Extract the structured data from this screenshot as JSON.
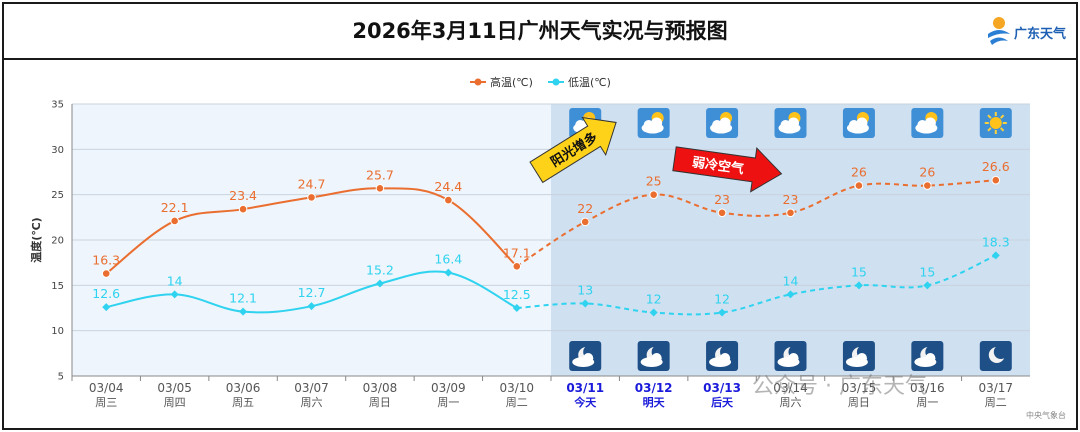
{
  "header": {
    "title": "2026年3月11日广州天气实况与预报图",
    "brand": "广东天气"
  },
  "watermark": "公众号 · 广东天气",
  "source": "中央气象台",
  "annotations": {
    "sunny_increase": "阳光增多",
    "weak_cold_air": "弱冷空气"
  },
  "colors": {
    "high": "#ea6e2f",
    "low": "#2fd3ef",
    "forecast_bg": "#cfe0f1",
    "observed_bg": "#eef5fc",
    "arrow_yellow": "#ffd21a",
    "arrow_red": "#ee1111",
    "forecast_date": "#1a1adb"
  },
  "chart_data": {
    "type": "line",
    "ylabel": "温度(℃)",
    "ylim": [
      5,
      35
    ],
    "yticks": [
      5,
      10,
      15,
      20,
      25,
      30,
      35
    ],
    "grid": true,
    "legend_position": "top-center",
    "categories": [
      "03/04",
      "03/05",
      "03/06",
      "03/07",
      "03/08",
      "03/09",
      "03/10",
      "03/11",
      "03/12",
      "03/13",
      "03/14",
      "03/15",
      "03/16",
      "03/17"
    ],
    "weekdays": [
      "周三",
      "周四",
      "周五",
      "周六",
      "周日",
      "周一",
      "周二",
      "今天",
      "明天",
      "后天",
      "周六",
      "周日",
      "周一",
      "周二"
    ],
    "forecast_start_index": 7,
    "series": [
      {
        "name": "高温(℃)",
        "values": [
          16.3,
          22.1,
          23.4,
          24.7,
          25.7,
          24.4,
          17.1,
          22,
          25,
          23,
          23,
          26,
          26,
          26.6
        ]
      },
      {
        "name": "低温(℃)",
        "values": [
          12.6,
          14,
          12.1,
          12.7,
          15.2,
          16.4,
          12.5,
          13,
          12,
          12,
          14,
          15,
          15,
          18.3
        ]
      }
    ],
    "day_icons": [
      "partly-cloudy-icon",
      "partly-cloudy-icon",
      "partly-cloudy-icon",
      "partly-cloudy-icon",
      "partly-cloudy-icon",
      "partly-cloudy-icon",
      "sunny-icon"
    ],
    "night_icons": [
      "cloudy-night-icon",
      "cloudy-night-icon",
      "cloudy-night-icon",
      "cloudy-night-icon",
      "cloudy-night-icon",
      "cloudy-night-icon",
      "clear-night-icon"
    ]
  }
}
